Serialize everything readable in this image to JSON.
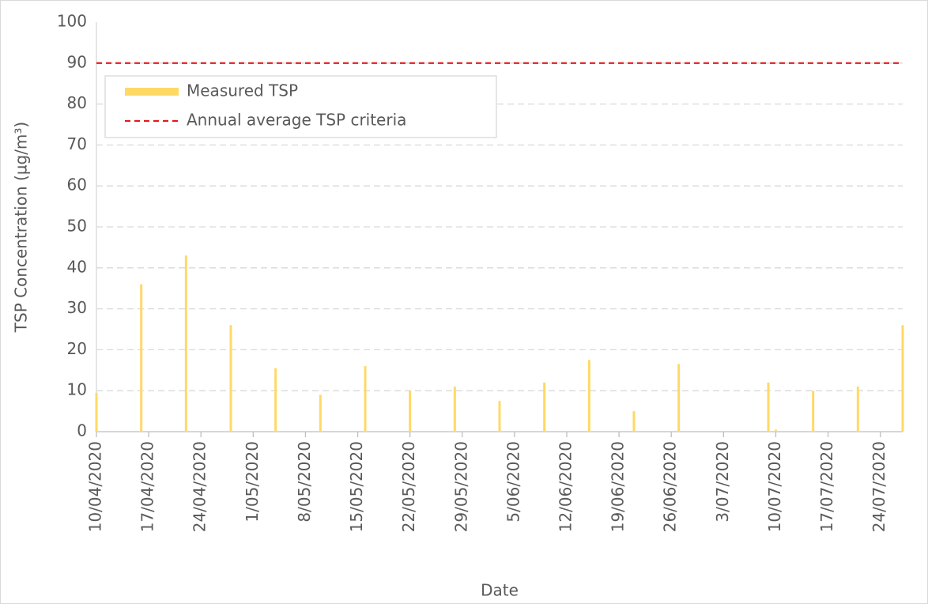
{
  "chart_data": {
    "type": "bar",
    "x_label": "Date",
    "y_label": "TSP Concentration (µg/m³)",
    "x": [
      "10/04/2020",
      "16/04/2020",
      "22/04/2020",
      "28/04/2020",
      "04/05/2020",
      "10/05/2020",
      "16/05/2020",
      "22/05/2020",
      "28/05/2020",
      "03/06/2020",
      "09/06/2020",
      "15/06/2020",
      "21/06/2020",
      "27/06/2020",
      "09/07/2020",
      "10/07/2020",
      "15/07/2020",
      "21/07/2020",
      "27/07/2020"
    ],
    "series": [
      {
        "name": "Measured TSP",
        "color": "#ffd966",
        "values": [
          9.5,
          36,
          43,
          26,
          15.5,
          9,
          16,
          10,
          11,
          7.5,
          12,
          17.5,
          5,
          16.5,
          12,
          0.5,
          10,
          11,
          26
        ]
      }
    ],
    "reference_lines": [
      {
        "name": "Annual average TSP criteria",
        "value": 90,
        "color": "#e31a1c"
      }
    ],
    "xlim": [
      "10/04/2020",
      "27/07/2020"
    ],
    "xticks": [
      "10/04/2020",
      "17/04/2020",
      "24/04/2020",
      "1/05/2020",
      "8/05/2020",
      "15/05/2020",
      "22/05/2020",
      "29/05/2020",
      "5/06/2020",
      "12/06/2020",
      "19/06/2020",
      "26/06/2020",
      "3/07/2020",
      "10/07/2020",
      "17/07/2020",
      "24/07/2020"
    ],
    "ylim": [
      0,
      100
    ],
    "yticks": [
      0,
      10,
      20,
      30,
      40,
      50,
      60,
      70,
      80,
      90,
      100
    ],
    "grid": true,
    "legend": "top-left"
  }
}
